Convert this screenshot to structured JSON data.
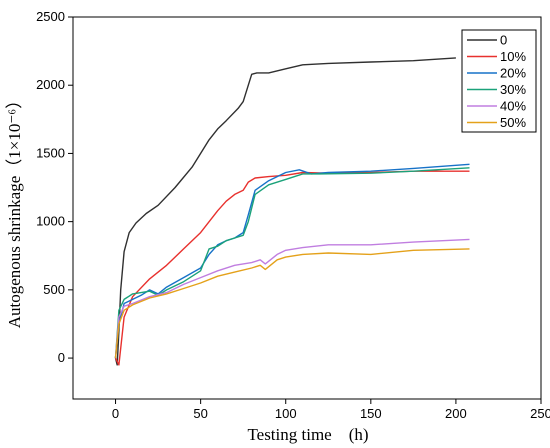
{
  "chart_data": {
    "type": "line",
    "title": "",
    "xlabel": "Testing time　(h)",
    "ylabel": "Autogenous shrinkage（1×10⁻⁶）",
    "xlim": [
      -25,
      250
    ],
    "ylim": [
      -300,
      2500
    ],
    "xticks": [
      "0",
      "50",
      "100",
      "150",
      "200",
      "250"
    ],
    "yticks": [
      "0",
      "500",
      "1000",
      "1500",
      "2000",
      "2500"
    ],
    "grid": false,
    "legend_position": "top-right",
    "series": [
      {
        "name": "0",
        "color": "#303030",
        "x": [
          0,
          1,
          2,
          3,
          5,
          8,
          12,
          18,
          25,
          35,
          45,
          55,
          60,
          65,
          72,
          75,
          78,
          80,
          83,
          90,
          100,
          110,
          125,
          150,
          175,
          200
        ],
        "y": [
          0,
          -50,
          200,
          500,
          780,
          920,
          990,
          1060,
          1120,
          1250,
          1400,
          1600,
          1680,
          1740,
          1830,
          1880,
          2000,
          2080,
          2090,
          2090,
          2120,
          2150,
          2160,
          2170,
          2180,
          2200
        ]
      },
      {
        "name": "10%",
        "color": "#e8312e",
        "x": [
          0,
          2,
          5,
          10,
          20,
          30,
          40,
          50,
          60,
          65,
          70,
          75,
          78,
          82,
          90,
          100,
          110,
          125,
          150,
          175,
          208
        ],
        "y": [
          0,
          -50,
          300,
          450,
          580,
          680,
          800,
          920,
          1080,
          1150,
          1200,
          1230,
          1290,
          1320,
          1330,
          1340,
          1360,
          1355,
          1360,
          1370,
          1370
        ]
      },
      {
        "name": "20%",
        "color": "#1772c8",
        "x": [
          0,
          2,
          5,
          10,
          15,
          20,
          25,
          30,
          40,
          50,
          55,
          60,
          65,
          70,
          75,
          78,
          82,
          90,
          100,
          108,
          115,
          125,
          150,
          175,
          208
        ],
        "y": [
          0,
          250,
          400,
          430,
          460,
          500,
          470,
          520,
          590,
          660,
          760,
          830,
          860,
          880,
          920,
          1050,
          1230,
          1300,
          1360,
          1380,
          1350,
          1360,
          1370,
          1390,
          1420
        ]
      },
      {
        "name": "30%",
        "color": "#1ba27a",
        "x": [
          0,
          2,
          5,
          10,
          15,
          20,
          25,
          30,
          40,
          50,
          55,
          60,
          65,
          70,
          75,
          78,
          82,
          90,
          100,
          110,
          120,
          150,
          175,
          208
        ],
        "y": [
          0,
          350,
          430,
          470,
          480,
          490,
          460,
          500,
          560,
          640,
          800,
          820,
          860,
          880,
          900,
          1000,
          1200,
          1270,
          1310,
          1350,
          1350,
          1355,
          1370,
          1395
        ]
      },
      {
        "name": "40%",
        "color": "#c07ee0",
        "x": [
          0,
          2,
          5,
          10,
          20,
          30,
          40,
          50,
          60,
          70,
          80,
          85,
          88,
          95,
          100,
          110,
          125,
          150,
          175,
          208
        ],
        "y": [
          0,
          300,
          380,
          400,
          450,
          480,
          540,
          590,
          640,
          680,
          700,
          720,
          690,
          760,
          790,
          810,
          830,
          830,
          850,
          870
        ]
      },
      {
        "name": "50%",
        "color": "#e4a11a",
        "x": [
          0,
          2,
          5,
          10,
          20,
          30,
          40,
          50,
          60,
          70,
          80,
          85,
          88,
          95,
          100,
          110,
          125,
          150,
          175,
          208
        ],
        "y": [
          0,
          250,
          350,
          390,
          440,
          470,
          510,
          550,
          600,
          630,
          660,
          680,
          650,
          720,
          740,
          760,
          770,
          760,
          790,
          800
        ]
      }
    ]
  }
}
